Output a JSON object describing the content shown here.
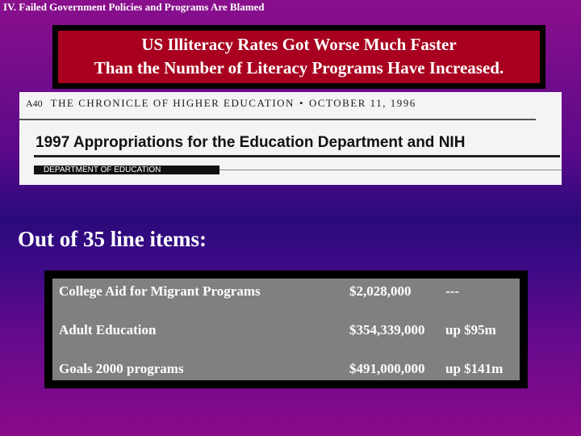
{
  "section_heading": "IV.  Failed Government Policies and  Programs Are Blamed",
  "title": {
    "line1": "US Illiteracy Rates Got Worse Much Faster",
    "line2": "Than the Number of Literacy Programs Have Increased."
  },
  "clipping": {
    "page": "A40",
    "publication": "THE CHRONICLE OF HIGHER EDUCATION",
    "separator": "•",
    "date": "OCTOBER 11, 1996",
    "headline": "1997 Appropriations for the Education Department and NIH",
    "department": "DEPARTMENT OF EDUCATION"
  },
  "subheading": "Out of 35 line items:",
  "line_items": [
    {
      "program": "College Aid for Migrant Programs",
      "amount": "$2,028,000",
      "change": "---"
    },
    {
      "program": "Adult Education",
      "amount": "$354,339,000",
      "change": "up $95m"
    },
    {
      "program": "Goals 2000 programs",
      "amount": "$491,000,000",
      "change": "up $141m"
    }
  ],
  "colors": {
    "title_background": "#a8001e",
    "table_background": "#808080",
    "frame": "#000000"
  }
}
